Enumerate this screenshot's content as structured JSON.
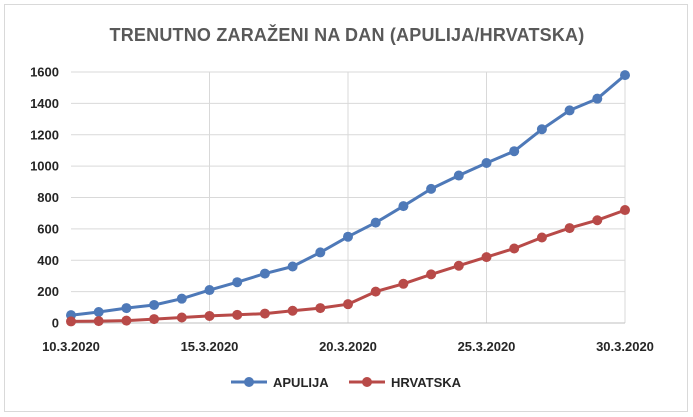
{
  "chart_data": {
    "type": "line",
    "title": "TRENUTNO ZARAŽENI NA DAN (APULIJA/HRVATSKA)",
    "xlabel": "",
    "ylabel": "",
    "x": [
      "10.3.2020",
      "11.3.2020",
      "12.3.2020",
      "13.3.2020",
      "14.3.2020",
      "15.3.2020",
      "16.3.2020",
      "17.3.2020",
      "18.3.2020",
      "19.3.2020",
      "20.3.2020",
      "21.3.2020",
      "22.3.2020",
      "23.3.2020",
      "24.3.2020",
      "25.3.2020",
      "26.3.2020",
      "27.3.2020",
      "28.3.2020",
      "29.3.2020",
      "30.3.2020"
    ],
    "x_tick_labels": [
      "10.3.2020",
      "15.3.2020",
      "20.3.2020",
      "25.3.2020",
      "30.3.2020"
    ],
    "y_ticks": [
      0,
      200,
      400,
      600,
      800,
      1000,
      1200,
      1400,
      1600
    ],
    "ylim": [
      0,
      1600
    ],
    "grid": true,
    "legend_position": "bottom",
    "series": [
      {
        "name": "APULIJA",
        "color": "#4e79b8",
        "values": [
          50,
          70,
          95,
          115,
          155,
          210,
          260,
          315,
          360,
          450,
          550,
          640,
          745,
          855,
          940,
          1020,
          1095,
          1235,
          1355,
          1430,
          1580
        ]
      },
      {
        "name": "HRVATSKA",
        "color": "#b84a48",
        "values": [
          10,
          12,
          15,
          25,
          35,
          45,
          52,
          60,
          78,
          95,
          120,
          200,
          250,
          310,
          365,
          420,
          475,
          545,
          605,
          655,
          720
        ]
      }
    ]
  }
}
